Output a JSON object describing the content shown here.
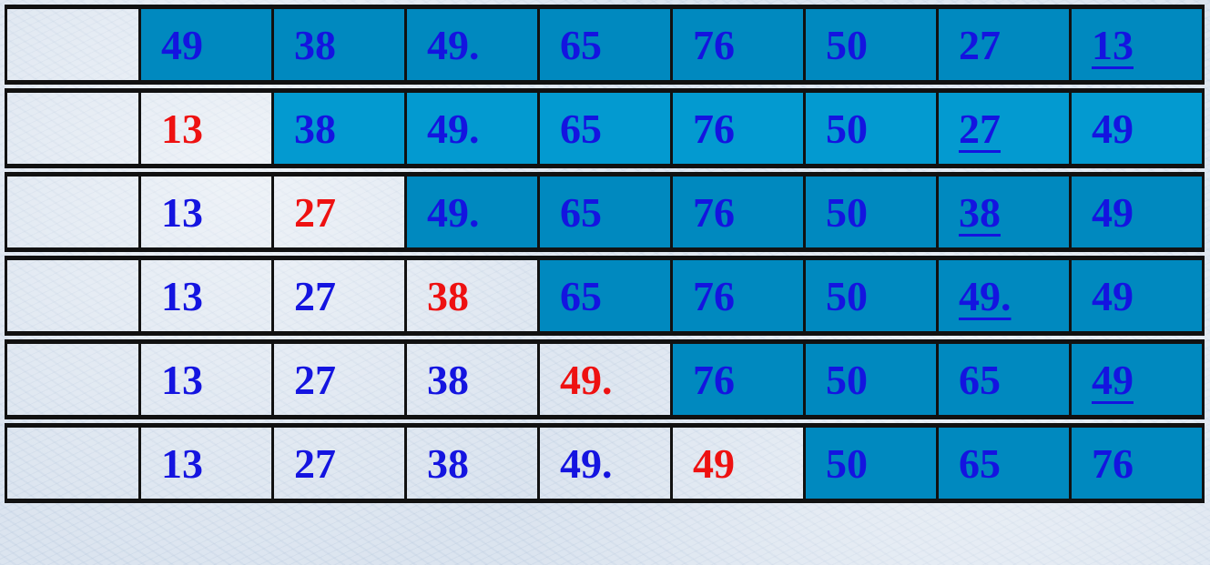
{
  "table": {
    "rows": [
      {
        "sorted_count": 0,
        "cells": [
          "49",
          "38",
          "49.",
          "65",
          "76",
          "50",
          "27",
          "13"
        ],
        "highlight_index": -1,
        "underline_index": 7
      },
      {
        "sorted_count": 1,
        "cells": [
          "13",
          "38",
          "49.",
          "65",
          "76",
          "50",
          "27",
          "49"
        ],
        "highlight_index": 0,
        "underline_index": 6
      },
      {
        "sorted_count": 2,
        "cells": [
          "13",
          "27",
          "49.",
          "65",
          "76",
          "50",
          "38",
          "49"
        ],
        "highlight_index": 1,
        "underline_index": 6
      },
      {
        "sorted_count": 3,
        "cells": [
          "13",
          "27",
          "38",
          "65",
          "76",
          "50",
          "49.",
          "49"
        ],
        "highlight_index": 2,
        "underline_index": 6
      },
      {
        "sorted_count": 4,
        "cells": [
          "13",
          "27",
          "38",
          "49.",
          "76",
          "50",
          "65",
          "49"
        ],
        "highlight_index": 3,
        "underline_index": 7
      },
      {
        "sorted_count": 5,
        "cells": [
          "13",
          "27",
          "38",
          "49.",
          "49",
          "50",
          "65",
          "76"
        ],
        "highlight_index": 4,
        "underline_index": -1
      }
    ]
  },
  "colors": {
    "unsorted_bg": "#0089bf",
    "unsorted_bg_alt": "#039ad0",
    "number_text": "#1414e0",
    "highlight_text": "#ee1111"
  }
}
